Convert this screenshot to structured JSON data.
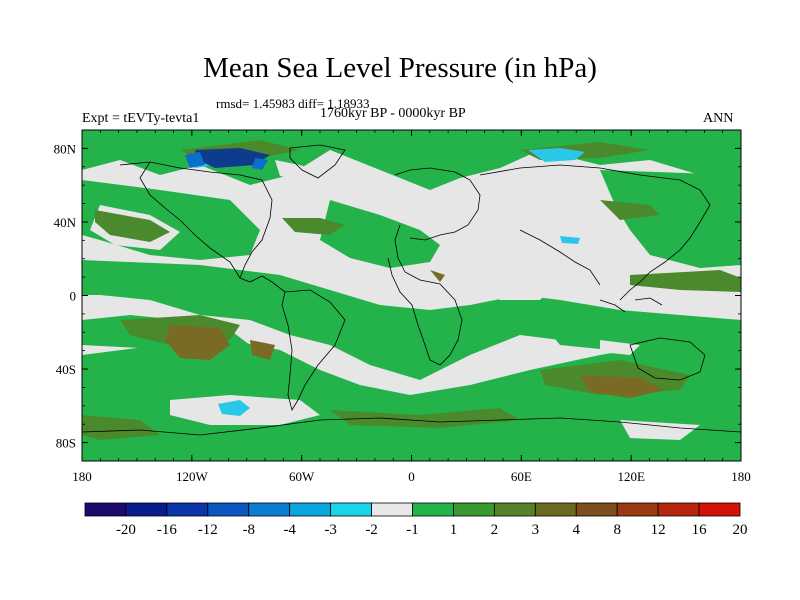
{
  "figure": {
    "title": "Mean Sea Level Pressure (in hPa)",
    "stats": "rmsd= 1.45983 diff= 1.18933",
    "experiment": "Expt = tEVTy-tevta1",
    "period": "1760kyr BP - 0000kyr BP",
    "season": "ANN"
  },
  "map": {
    "lon_range": [
      -180,
      180
    ],
    "lat_range": [
      -90,
      90
    ],
    "lon_tick_values": [
      -180,
      -120,
      -60,
      0,
      60,
      120,
      180
    ],
    "lon_tick_labels": [
      "180",
      "120W",
      "60W",
      "0",
      "60E",
      "120E",
      "180"
    ],
    "lat_tick_values": [
      80,
      40,
      0,
      -40,
      -80
    ],
    "lat_tick_labels": [
      "80N",
      "40N",
      "0",
      "40S",
      "80S"
    ],
    "dominant_class_colors": {
      "background": "#e6e6e6",
      "positive_1_2": "#23b34a",
      "positive_2_3": "#4b8a2c",
      "positive_3_4": "#7a6b24",
      "negative_-2_-1": "#29c8e8",
      "negative_deep": "#0e3b8c",
      "coast_color": "#000000"
    }
  },
  "colorbar": {
    "colors": [
      "#1a0a6e",
      "#0a1c8c",
      "#0b35a8",
      "#0b56c0",
      "#0a7cd2",
      "#0aa6e0",
      "#1ad4ea",
      "#e8e8e8",
      "#22b34a",
      "#3a9a30",
      "#57822a",
      "#6b6a22",
      "#7d4f1c",
      "#9a3a14",
      "#b8250e",
      "#d51208"
    ],
    "labels": [
      "-20",
      "-16",
      "-12",
      "-8",
      "-4",
      "-3",
      "-2",
      "-1",
      "1",
      "2",
      "3",
      "4",
      "8",
      "12",
      "16",
      "20"
    ]
  }
}
